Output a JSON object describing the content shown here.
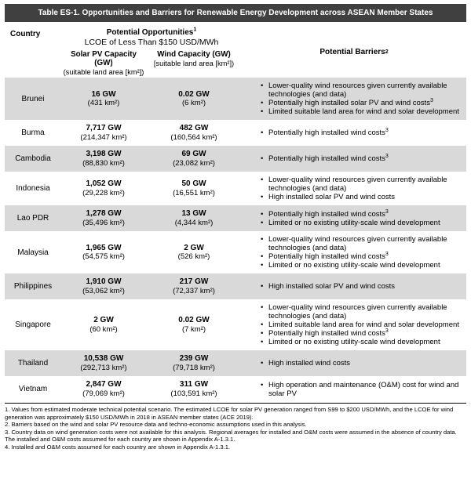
{
  "title": "Table ES-1. Opportunities and Barriers for Renewable Energy Development across ASEAN Member States",
  "header": {
    "country": "Country",
    "opportunities_title": "Potential Opportunities",
    "opportunities_sup": "1",
    "opportunities_subtitle": "LCOE of Less Than $150 USD/MWh",
    "solar_label": "Solar PV Capacity (GW)",
    "solar_sublabel": "(suitable land area [km²])",
    "wind_label": "Wind Capacity (GW)",
    "wind_sublabel": "[suitable land area [km²])",
    "barriers_title": "Potential Barriers",
    "barriers_sup": "2"
  },
  "rows": [
    {
      "country": "Brunei",
      "shaded": true,
      "solar_gw": "16 GW",
      "solar_area": "(431 km²)",
      "wind_gw": "0.02 GW",
      "wind_area": "(6 km²)",
      "barriers": [
        {
          "text": "Lower-quality wind resources given currently available technologies (and data)",
          "sup": ""
        },
        {
          "text": "Potentially high installed solar PV and wind costs",
          "sup": "3"
        },
        {
          "text": "Limited suitable land area for wind and solar development",
          "sup": ""
        }
      ]
    },
    {
      "country": "Burma",
      "shaded": false,
      "solar_gw": "7,717 GW",
      "solar_area": "(214,347 km²)",
      "wind_gw": "482 GW",
      "wind_area": "(160,564 km²)",
      "barriers": [
        {
          "text": "Potentially high installed wind costs",
          "sup": "3"
        }
      ]
    },
    {
      "country": "Cambodia",
      "shaded": true,
      "solar_gw": "3,198 GW",
      "solar_area": "(88,830 km²)",
      "wind_gw": "69 GW",
      "wind_area": "(23,082 km²)",
      "barriers": [
        {
          "text": "Potentially high installed wind costs",
          "sup": "3"
        }
      ]
    },
    {
      "country": "Indonesia",
      "shaded": false,
      "solar_gw": "1,052 GW",
      "solar_area": "(29,228 km²)",
      "wind_gw": "50 GW",
      "wind_area": "(16,551 km²)",
      "barriers": [
        {
          "text": "Lower-quality wind resources given currently available technologies (and data)",
          "sup": ""
        },
        {
          "text": "High installed solar PV and wind costs",
          "sup": ""
        }
      ]
    },
    {
      "country": "Lao PDR",
      "shaded": true,
      "solar_gw": "1,278 GW",
      "solar_area": "(35,496 km²)",
      "wind_gw": "13 GW",
      "wind_area": "(4,344 km²)",
      "barriers": [
        {
          "text": "Potentially high installed wind costs",
          "sup": "3"
        },
        {
          "text": "Limited or no existing utility-scale wind development",
          "sup": ""
        }
      ]
    },
    {
      "country": "Malaysia",
      "shaded": false,
      "solar_gw": "1,965 GW",
      "solar_area": "(54,575 km²)",
      "wind_gw": "2 GW",
      "wind_area": "(526 km²)",
      "barriers": [
        {
          "text": "Lower-quality wind resources given currently available technologies (and data)",
          "sup": ""
        },
        {
          "text": "Potentially high installed wind costs",
          "sup": "3"
        },
        {
          "text": "Limited or no existing utility-scale wind development",
          "sup": ""
        }
      ]
    },
    {
      "country": "Philippines",
      "shaded": true,
      "solar_gw": "1,910 GW",
      "solar_area": "(53,062 km²)",
      "wind_gw": "217 GW",
      "wind_area": "(72,337 km²)",
      "barriers": [
        {
          "text": "High installed solar PV and wind costs",
          "sup": ""
        }
      ]
    },
    {
      "country": "Singapore",
      "shaded": false,
      "solar_gw": "2 GW",
      "solar_area": "(60 km²)",
      "wind_gw": "0.02 GW",
      "wind_area": "(7 km²)",
      "barriers": [
        {
          "text": "Lower-quality wind resources given currently available technologies (and data)",
          "sup": ""
        },
        {
          "text": "Limited suitable land area for wind and solar development",
          "sup": ""
        },
        {
          "text": "Potentially high installed wind costs",
          "sup": "3"
        },
        {
          "text": "Limited or no existing utility-scale wind development",
          "sup": ""
        }
      ]
    },
    {
      "country": "Thailand",
      "shaded": true,
      "solar_gw": "10,538 GW",
      "solar_area": "(292,713 km²)",
      "wind_gw": "239 GW",
      "wind_area": "(79,718 km²)",
      "barriers": [
        {
          "text": "High installed wind costs",
          "sup": ""
        }
      ]
    },
    {
      "country": "Vietnam",
      "shaded": false,
      "solar_gw": "2,847 GW",
      "solar_area": "(79,069 km²)",
      "wind_gw": "311 GW",
      "wind_area": "(103,591 km²)",
      "barriers": [
        {
          "text": "High operation and maintenance (O&M) cost for wind and solar PV",
          "sup": ""
        }
      ]
    }
  ],
  "footnotes": [
    "1. Values from estimated moderate technical potential scenario. The estimated LCOE for solar PV generation ranged from S99 to $200 USD/MWh, and the LCOE for wind generation was approximately $150 USD/MWh in 2018 in ASEAN member states (ACE 2019).",
    "2. Barriers based on the wind and solar PV resource data and techno-economic assumptions used in this analysis.",
    "3. Country data on wind generation costs were not available for this analysis. Regional averages for installed and O&M costs were assumed in the absence of country data. The installed and O&M costs assumed for each country are shown in Appendix A-1.3.1.",
    "4. Installed and O&M costs assumed for each country are shown in Appendix A-1.3.1."
  ],
  "colors": {
    "title_bar_bg": "#404040",
    "title_bar_text": "#ffffff",
    "row_shaded_bg": "#d9d9d9",
    "text": "#000000"
  }
}
